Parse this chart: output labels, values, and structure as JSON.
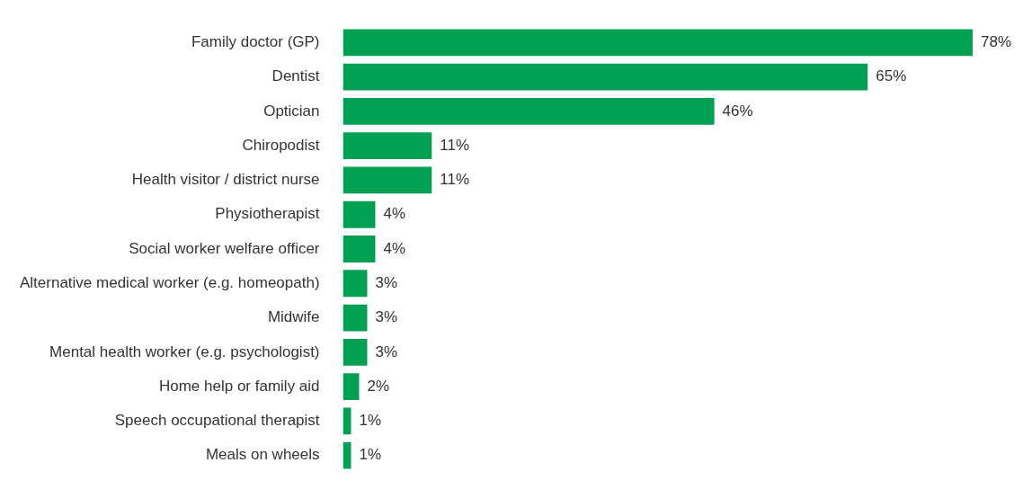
{
  "chart_data": {
    "type": "bar",
    "orientation": "horizontal",
    "categories": [
      "Family doctor (GP)",
      "Dentist",
      "Optician",
      "Chiropodist",
      "Health visitor / district nurse",
      "Physiotherapist",
      "Social worker welfare officer",
      "Alternative medical worker (e.g. homeopath)",
      "Midwife",
      "Mental health worker (e.g. psychologist)",
      "Home help or family aid",
      "Speech occupational therapist",
      "Meals on wheels"
    ],
    "values": [
      78,
      65,
      46,
      11,
      11,
      4,
      4,
      3,
      3,
      3,
      2,
      1,
      1
    ],
    "value_labels": [
      "78%",
      "65%",
      "46%",
      "11%",
      "11%",
      "4%",
      "4%",
      "3%",
      "3%",
      "3%",
      "2%",
      "1%",
      "1%"
    ],
    "color": "#00a053",
    "tick_labels": "y",
    "legend": false
  }
}
